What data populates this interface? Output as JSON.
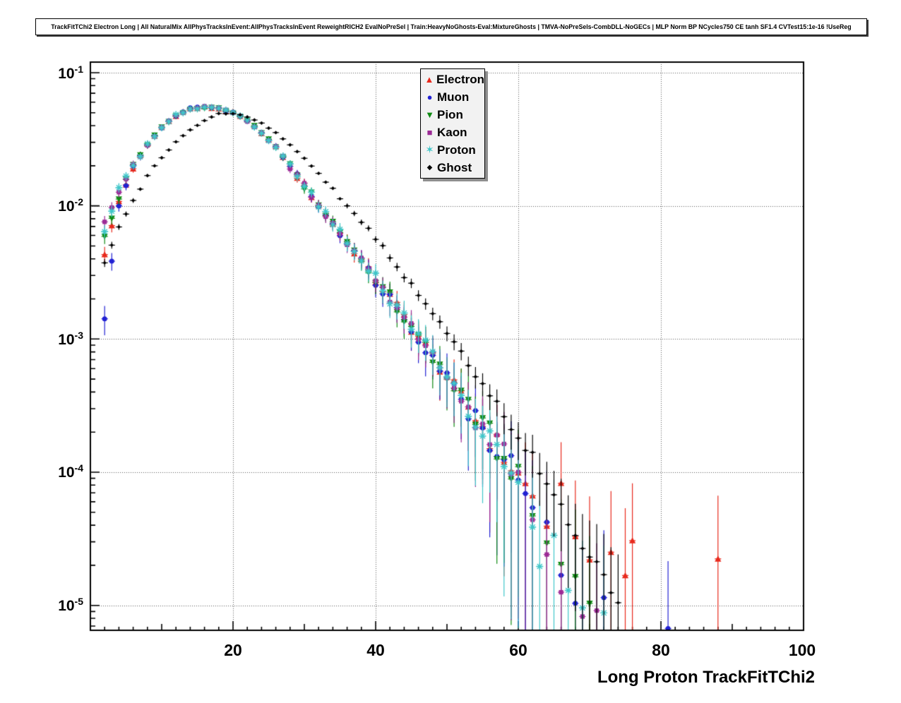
{
  "title": "TrackFitTChi2 Electron Long | All NaturalMix AllPhysTracksInEvent:AllPhysTracksInEvent ReweightRICH2 EvalNoPreSel | Train:HeavyNoGhosts-Eval:MixtureGhosts | TMVA-NoPreSels-CombDLL-NoGECs | MLP Norm BP NCycles750 CE tanh SF1.4 CVTest15:1e-16 !UseReg",
  "axes": {
    "x": {
      "title": "Long Proton TrackFitTChi2",
      "tick_labels": [
        "20",
        "40",
        "60",
        "80",
        "100"
      ]
    },
    "y": {
      "tick_labels": [
        {
          "base": "10",
          "exp": "-1"
        },
        {
          "base": "10",
          "exp": "-2"
        },
        {
          "base": "10",
          "exp": "-3"
        },
        {
          "base": "10",
          "exp": "-4"
        },
        {
          "base": "10",
          "exp": "-5"
        }
      ]
    }
  },
  "legend": {
    "items": [
      {
        "label": "Electron",
        "glyph": "▲",
        "marker": "triangle-up",
        "color": "#e8291c"
      },
      {
        "label": "Muon",
        "glyph": "●",
        "marker": "circle",
        "color": "#2121d3"
      },
      {
        "label": "Pion",
        "glyph": "▼",
        "marker": "triangle-down",
        "color": "#0e8a12"
      },
      {
        "label": "Kaon",
        "glyph": "■",
        "marker": "square",
        "color": "#9c2a96"
      },
      {
        "label": "Proton",
        "glyph": "✶",
        "marker": "star",
        "color": "#3ec6c9"
      },
      {
        "label": "Ghost",
        "glyph": "◆",
        "marker": "diamond",
        "color": "#000000"
      }
    ]
  },
  "chart_data": {
    "type": "scatter",
    "title": "TrackFitTChi2 Electron Long (normalized distributions)",
    "xlabel": "Long Proton TrackFitTChi2",
    "ylabel": "",
    "y_scale": "log",
    "xlim": [
      0,
      100
    ],
    "ylim": [
      6.5e-06,
      0.12
    ],
    "grid": true,
    "legend_position": "top-center",
    "err_coeff": 0.04,
    "y_encoding": "log10y arrays give log10 of the normalized bin content at x = x0 + i*dx; extra_points are [x, log10y] pairs",
    "series": [
      {
        "name": "Electron",
        "color": "#e8291c",
        "marker": "triangle-up",
        "x0": 2,
        "dx": 2,
        "err_scale": 1.0,
        "log10y": [
          -2.35,
          -1.97,
          -1.71,
          -1.54,
          -1.41,
          -1.32,
          -1.27,
          -1.26,
          -1.27,
          -1.3,
          -1.36,
          -1.45,
          -1.56,
          -1.7,
          -1.85,
          -1.99,
          -2.13,
          -2.27,
          -2.41,
          -2.55,
          -2.69,
          -2.83,
          -2.98,
          -3.13,
          -3.28,
          -3.43,
          -3.58,
          -3.73,
          -3.88,
          -4.03,
          -4.18
        ],
        "extra_points": [
          [
            64,
            -4.34
          ],
          [
            66,
            -4.18
          ],
          [
            68,
            -4.62
          ],
          [
            70,
            -4.55
          ],
          [
            73,
            -4.66
          ],
          [
            75,
            -4.65
          ],
          [
            76,
            -4.66
          ],
          [
            88,
            -4.66
          ]
        ]
      },
      {
        "name": "Muon",
        "color": "#2121d3",
        "marker": "circle",
        "x0": 2,
        "dx": 2,
        "err_scale": 1.0,
        "log10y": [
          -2.85,
          -2.02,
          -1.71,
          -1.54,
          -1.41,
          -1.32,
          -1.27,
          -1.26,
          -1.27,
          -1.3,
          -1.36,
          -1.45,
          -1.56,
          -1.7,
          -1.85,
          -1.99,
          -2.13,
          -2.27,
          -2.41,
          -2.55,
          -2.69,
          -2.83,
          -2.98,
          -3.13,
          -3.28,
          -3.43,
          -3.58,
          -3.73,
          -3.88,
          -4.03,
          -4.18
        ],
        "extra_points": [
          [
            64,
            -4.5
          ],
          [
            66,
            -4.76
          ],
          [
            68,
            -5.04
          ],
          [
            72,
            -5.06
          ],
          [
            81,
            -5.07
          ]
        ]
      },
      {
        "name": "Pion",
        "color": "#0e8a12",
        "marker": "triangle-down",
        "x0": 2,
        "dx": 2,
        "err_scale": 1.0,
        "log10y": [
          -2.25,
          -1.94,
          -1.71,
          -1.54,
          -1.41,
          -1.32,
          -1.27,
          -1.26,
          -1.27,
          -1.3,
          -1.36,
          -1.45,
          -1.56,
          -1.7,
          -1.85,
          -1.99,
          -2.13,
          -2.27,
          -2.41,
          -2.55,
          -2.69,
          -2.83,
          -2.98,
          -3.13,
          -3.28,
          -3.43,
          -3.58,
          -3.73,
          -3.88,
          -4.03
        ],
        "extra_points": [
          [
            62,
            -4.3
          ],
          [
            64,
            -4.52
          ],
          [
            66,
            -4.62
          ],
          [
            68,
            -4.9
          ],
          [
            70,
            -5.0
          ]
        ]
      },
      {
        "name": "Kaon",
        "color": "#9c2a96",
        "marker": "square",
        "x0": 2,
        "dx": 2,
        "err_scale": 1.0,
        "log10y": [
          -2.1,
          -1.88,
          -1.71,
          -1.54,
          -1.41,
          -1.32,
          -1.27,
          -1.26,
          -1.27,
          -1.3,
          -1.36,
          -1.45,
          -1.56,
          -1.7,
          -1.85,
          -1.99,
          -2.13,
          -2.27,
          -2.41,
          -2.55,
          -2.69,
          -2.83,
          -2.98,
          -3.13,
          -3.28,
          -3.43,
          -3.58,
          -3.73,
          -3.88,
          -4.03
        ],
        "extra_points": [
          [
            62,
            -4.36
          ],
          [
            64,
            -4.6
          ],
          [
            66,
            -4.86
          ],
          [
            69,
            -5.0
          ],
          [
            71,
            -5.05
          ]
        ]
      },
      {
        "name": "Proton",
        "color": "#3ec6c9",
        "marker": "star",
        "x0": 2,
        "dx": 2,
        "err_scale": 1.0,
        "log10y": [
          -2.2,
          -1.86,
          -1.71,
          -1.54,
          -1.41,
          -1.32,
          -1.27,
          -1.26,
          -1.27,
          -1.3,
          -1.36,
          -1.45,
          -1.56,
          -1.7,
          -1.85,
          -1.99,
          -2.13,
          -2.27,
          -2.41,
          -2.55,
          -2.69,
          -2.83,
          -2.98,
          -3.13,
          -3.28,
          -3.43,
          -3.58,
          -3.73,
          -3.88,
          -4.03
        ],
        "extra_points": [
          [
            62,
            -4.46
          ],
          [
            63,
            -4.75
          ],
          [
            65,
            -4.6
          ],
          [
            67,
            -4.86
          ],
          [
            69,
            -5.05
          ],
          [
            72,
            -5.1
          ]
        ]
      },
      {
        "name": "Ghost",
        "color": "#000000",
        "marker": "diamond",
        "x0": 2,
        "dx": 2,
        "err_scale": 0.45,
        "log10y": [
          -2.42,
          -2.16,
          -1.95,
          -1.78,
          -1.64,
          -1.52,
          -1.43,
          -1.36,
          -1.31,
          -1.31,
          -1.33,
          -1.38,
          -1.45,
          -1.54,
          -1.64,
          -1.76,
          -1.88,
          -2.0,
          -2.12,
          -2.24,
          -2.38,
          -2.52,
          -2.66,
          -2.81,
          -2.96,
          -3.11,
          -3.26,
          -3.41,
          -3.57,
          -3.73,
          -3.9,
          -4.07,
          -4.24,
          -4.42,
          -4.6,
          -4.78,
          -4.96
        ],
        "extra_points": []
      }
    ]
  }
}
